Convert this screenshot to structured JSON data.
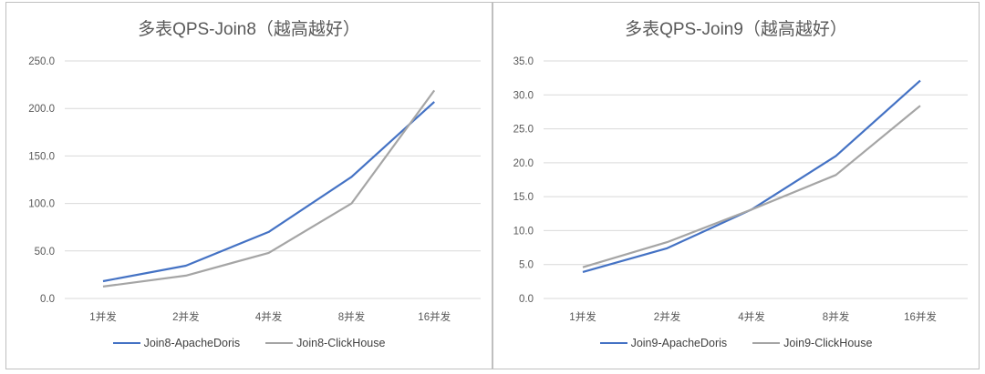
{
  "charts": [
    {
      "title": "多表QPS-Join8（越高越好）",
      "legend": [
        {
          "label": "Join8-ApacheDoris",
          "color": "#4472c4"
        },
        {
          "label": "Join8-ClickHouse",
          "color": "#a5a5a5"
        }
      ]
    },
    {
      "title": "多表QPS-Join9（越高越好）",
      "legend": [
        {
          "label": "Join9-ApacheDoris",
          "color": "#4472c4"
        },
        {
          "label": "Join9-ClickHouse",
          "color": "#a5a5a5"
        }
      ]
    }
  ],
  "chart_data": [
    {
      "type": "line",
      "title": "多表QPS-Join8（越高越好）",
      "xlabel": "",
      "ylabel": "",
      "categories": [
        "1并发",
        "2并发",
        "4并发",
        "8并发",
        "16并发"
      ],
      "series": [
        {
          "name": "Join8-ApacheDoris",
          "color": "#4472c4",
          "values": [
            18.2,
            34.5,
            70.0,
            128.0,
            207.0
          ]
        },
        {
          "name": "Join8-ClickHouse",
          "color": "#a5a5a5",
          "values": [
            12.5,
            24.0,
            48.0,
            100.0,
            219.0
          ]
        }
      ],
      "ylim": [
        0,
        250
      ],
      "yticks": [
        "0.0",
        "50.0",
        "100.0",
        "150.0",
        "200.0",
        "250.0"
      ],
      "ytick_values": [
        0,
        50,
        100,
        150,
        200,
        250
      ],
      "grid": true,
      "legend_position": "bottom"
    },
    {
      "type": "line",
      "title": "多表QPS-Join9（越高越好）",
      "xlabel": "",
      "ylabel": "",
      "categories": [
        "1并发",
        "2并发",
        "4并发",
        "8并发",
        "16并发"
      ],
      "series": [
        {
          "name": "Join9-ApacheDoris",
          "color": "#4472c4",
          "values": [
            3.9,
            7.4,
            13.1,
            21.0,
            32.1
          ]
        },
        {
          "name": "Join9-ClickHouse",
          "color": "#a5a5a5",
          "values": [
            4.6,
            8.3,
            13.1,
            18.2,
            28.4
          ]
        }
      ],
      "ylim": [
        0,
        35
      ],
      "yticks": [
        "0.0",
        "5.0",
        "10.0",
        "15.0",
        "20.0",
        "25.0",
        "30.0",
        "35.0"
      ],
      "ytick_values": [
        0,
        5,
        10,
        15,
        20,
        25,
        30,
        35
      ],
      "grid": true,
      "legend_position": "bottom"
    }
  ]
}
